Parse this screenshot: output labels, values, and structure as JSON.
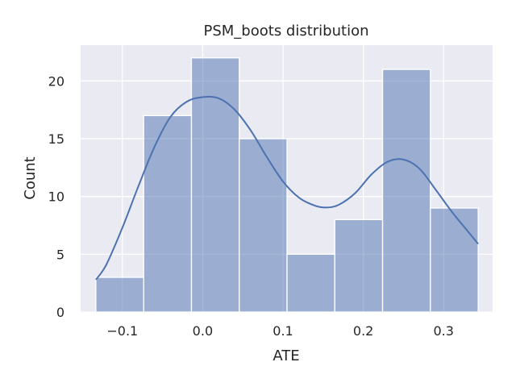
{
  "chart_data": {
    "type": "bar",
    "title": "PSM_boots distribution",
    "xlabel": "ATE",
    "ylabel": "Count",
    "xlim": [
      -0.152,
      0.361
    ],
    "ylim": [
      0,
      23.1
    ],
    "xticks": [
      -0.1,
      0.0,
      0.1,
      0.2,
      0.3
    ],
    "xtick_labels": [
      "−0.1",
      "0.0",
      "0.1",
      "0.2",
      "0.3"
    ],
    "yticks": [
      0,
      5,
      10,
      15,
      20
    ],
    "ytick_labels": [
      "0",
      "5",
      "10",
      "15",
      "20"
    ],
    "bins": [
      {
        "x0": -0.133,
        "x1": -0.0735,
        "count": 3
      },
      {
        "x0": -0.0735,
        "x1": -0.014,
        "count": 17
      },
      {
        "x0": -0.014,
        "x1": 0.0455,
        "count": 22
      },
      {
        "x0": 0.0455,
        "x1": 0.105,
        "count": 15
      },
      {
        "x0": 0.105,
        "x1": 0.1645,
        "count": 5
      },
      {
        "x0": 0.1645,
        "x1": 0.224,
        "count": 8
      },
      {
        "x0": 0.224,
        "x1": 0.2835,
        "count": 21
      },
      {
        "x0": 0.2835,
        "x1": 0.343,
        "count": 9
      }
    ],
    "kde": {
      "x": [
        -0.133,
        -0.12,
        -0.1,
        -0.08,
        -0.06,
        -0.04,
        -0.02,
        0.0,
        0.02,
        0.04,
        0.06,
        0.08,
        0.1,
        0.12,
        0.14,
        0.155,
        0.17,
        0.19,
        0.21,
        0.23,
        0.25,
        0.27,
        0.29,
        0.31,
        0.33,
        0.343
      ],
      "y": [
        2.8,
        4.1,
        7.3,
        10.9,
        14.3,
        16.9,
        18.2,
        18.6,
        18.5,
        17.5,
        15.7,
        13.4,
        11.3,
        9.9,
        9.2,
        9.05,
        9.3,
        10.3,
        11.9,
        13.0,
        13.2,
        12.4,
        10.6,
        8.7,
        7.0,
        5.9
      ]
    },
    "grid": true,
    "colors": {
      "background": "#eaeaf2",
      "grid": "#ffffff",
      "bar_fill": "#4c72b0",
      "bar_alpha": 0.5,
      "bar_edge": "#ffffff",
      "kde_line": "#4c72b0"
    }
  }
}
